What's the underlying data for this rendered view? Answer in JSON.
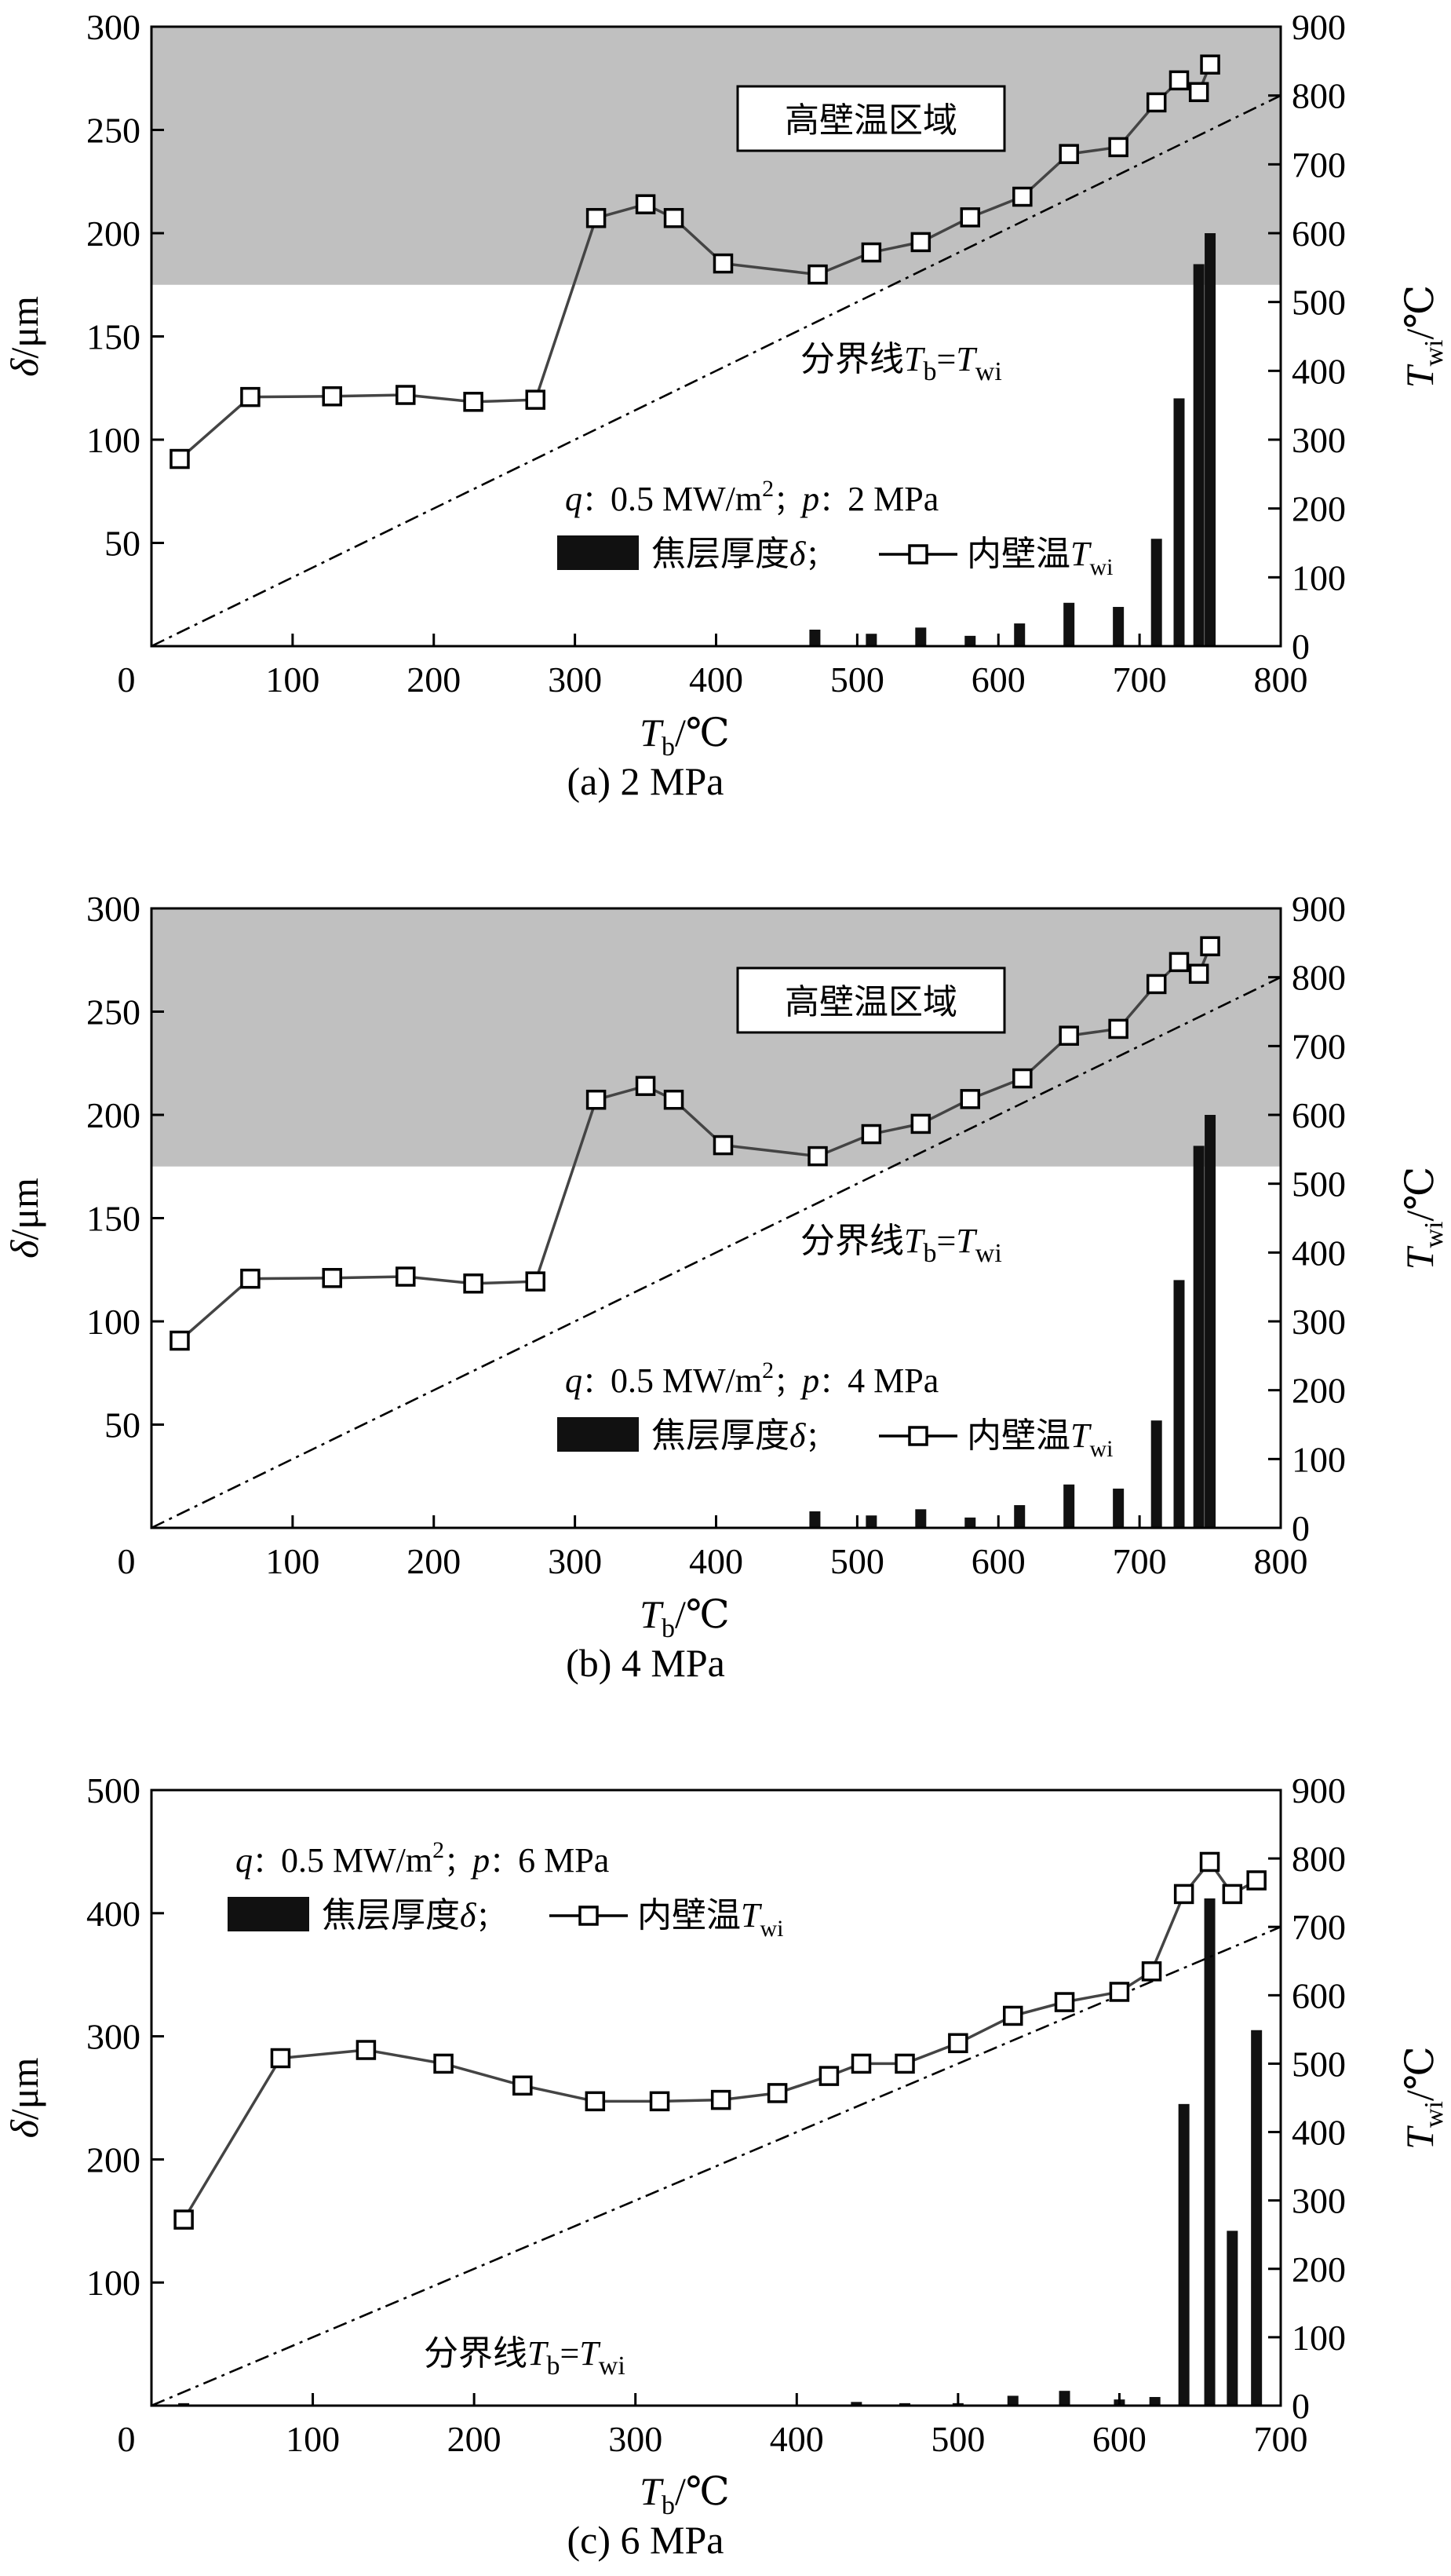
{
  "figure": {
    "charts": [
      {
        "id": "a",
        "caption": "(a) 2 MPa",
        "left_axis": {
          "label_main": "δ",
          "label_unit": "/μm",
          "ylim": [
            0,
            300
          ],
          "ticks": [
            50,
            100,
            150,
            200,
            250,
            300
          ],
          "tick_labels": [
            "50",
            "100",
            "150",
            "200",
            "250",
            "300"
          ]
        },
        "right_axis": {
          "label_main": "T",
          "label_sub": "wi",
          "label_unit": "/℃",
          "ylim": [
            0,
            900
          ],
          "ticks": [
            0,
            100,
            200,
            300,
            400,
            500,
            600,
            700,
            800,
            900
          ],
          "tick_labels": [
            "0",
            "100",
            "200",
            "300",
            "400",
            "500",
            "600",
            "700",
            "800",
            "900"
          ]
        },
        "x_axis": {
          "label_main": "T",
          "label_sub": "b",
          "label_unit": "/℃",
          "xlim": [
            0,
            800
          ],
          "ticks": [
            0,
            100,
            200,
            300,
            400,
            500,
            600,
            700,
            800
          ],
          "tick_labels": [
            "0",
            "100",
            "200",
            "300",
            "400",
            "500",
            "600",
            "700",
            "800"
          ]
        },
        "region_label": "高壁温区域",
        "legend": {
          "cond_q": "q",
          "cond_sep": "：",
          "cond_q_val": "0.5 MW/m",
          "cond_sq": "2",
          "cond_semi": "；",
          "cond_p": "p",
          "cond_p_val": "2 MPa",
          "bar_label": "焦层厚度",
          "bar_symbol": "δ",
          "line_label": "内壁温",
          "line_symbol": "T",
          "line_sub": "wi"
        },
        "boundary_label": {
          "text": "分界线",
          "t1": "T",
          "s1": "b",
          "eq": "=",
          "t2": "T",
          "s2": "wi"
        }
      },
      {
        "id": "b",
        "caption": "(b) 4 MPa",
        "left_axis": {
          "label_main": "δ",
          "label_unit": "/μm",
          "ylim": [
            0,
            300
          ],
          "ticks": [
            50,
            100,
            150,
            200,
            250,
            300
          ],
          "tick_labels": [
            "50",
            "100",
            "150",
            "200",
            "250",
            "300"
          ]
        },
        "right_axis": {
          "label_main": "T",
          "label_sub": "wi",
          "label_unit": "/℃",
          "ylim": [
            0,
            900
          ],
          "ticks": [
            0,
            100,
            200,
            300,
            400,
            500,
            600,
            700,
            800,
            900
          ],
          "tick_labels": [
            "0",
            "100",
            "200",
            "300",
            "400",
            "500",
            "600",
            "700",
            "800",
            "900"
          ]
        },
        "x_axis": {
          "label_main": "T",
          "label_sub": "b",
          "label_unit": "/℃",
          "xlim": [
            0,
            800
          ],
          "ticks": [
            0,
            100,
            200,
            300,
            400,
            500,
            600,
            700,
            800
          ],
          "tick_labels": [
            "0",
            "100",
            "200",
            "300",
            "400",
            "500",
            "600",
            "700",
            "800"
          ]
        },
        "region_label": "高壁温区域",
        "legend": {
          "cond_q": "q",
          "cond_sep": "：",
          "cond_q_val": "0.5 MW/m",
          "cond_sq": "2",
          "cond_semi": "；",
          "cond_p": "p",
          "cond_p_val": "4 MPa",
          "bar_label": "焦层厚度",
          "bar_symbol": "δ",
          "line_label": "内壁温",
          "line_symbol": "T",
          "line_sub": "wi"
        },
        "boundary_label": {
          "text": "分界线",
          "t1": "T",
          "s1": "b",
          "eq": "=",
          "t2": "T",
          "s2": "wi"
        }
      },
      {
        "id": "c",
        "caption": "(c) 6 MPa",
        "left_axis": {
          "label_main": "δ",
          "label_unit": "/μm",
          "ylim": [
            0,
            500
          ],
          "ticks": [
            100,
            200,
            300,
            400,
            500
          ],
          "tick_labels": [
            "100",
            "200",
            "300",
            "400",
            "500"
          ]
        },
        "right_axis": {
          "label_main": "T",
          "label_sub": "wi",
          "label_unit": "/℃",
          "ylim": [
            0,
            900
          ],
          "ticks": [
            0,
            100,
            200,
            300,
            400,
            500,
            600,
            700,
            800,
            900
          ],
          "tick_labels": [
            "0",
            "100",
            "200",
            "300",
            "400",
            "500",
            "600",
            "700",
            "800",
            "900"
          ]
        },
        "x_axis": {
          "label_main": "T",
          "label_sub": "b",
          "label_unit": "/℃",
          "xlim": [
            0,
            700
          ],
          "ticks": [
            0,
            100,
            200,
            300,
            400,
            500,
            600,
            700
          ],
          "tick_labels": [
            "0",
            "100",
            "200",
            "300",
            "400",
            "500",
            "600",
            "700"
          ]
        },
        "legend": {
          "cond_q": "q",
          "cond_sep": "：",
          "cond_q_val": "0.5 MW/m",
          "cond_sq": "2",
          "cond_semi": "；",
          "cond_p": "p",
          "cond_p_val": "6 MPa",
          "bar_label": "焦层厚度",
          "bar_symbol": "δ",
          "line_label": "内壁温",
          "line_symbol": "T",
          "line_sub": "wi"
        },
        "boundary_label": {
          "text": "分界线",
          "t1": "T",
          "s1": "b",
          "eq": "=",
          "t2": "T",
          "s2": "wi"
        }
      }
    ]
  },
  "chart_data": [
    {
      "type": "bar+line",
      "title": "(a) 2 MPa",
      "xlabel": "Tb/℃",
      "ylabel_left": "δ/μm",
      "ylabel_right": "Twi/℃",
      "xlim": [
        0,
        800
      ],
      "ylim_left": [
        0,
        300
      ],
      "ylim_right": [
        0,
        900
      ],
      "high_wall_temp_region_twi": [
        525,
        900
      ],
      "boundary_line": {
        "name": "Tb=Twi",
        "points": [
          [
            0,
            0
          ],
          [
            800,
            800
          ]
        ]
      },
      "series": [
        {
          "name": "焦层厚度δ",
          "axis": "left",
          "kind": "bar",
          "x": [
            470,
            510,
            545,
            580,
            615,
            650,
            685,
            712,
            728,
            742,
            750
          ],
          "values": [
            8,
            6,
            9,
            5,
            11,
            21,
            19,
            52,
            120,
            185,
            200
          ]
        },
        {
          "name": "内壁温Twi",
          "axis": "right",
          "kind": "line",
          "x": [
            20,
            70,
            128,
            180,
            228,
            272,
            315,
            350,
            370,
            405,
            472,
            510,
            545,
            580,
            617,
            650,
            685,
            712,
            728,
            742,
            750
          ],
          "values": [
            272,
            362,
            363,
            365,
            355,
            358,
            622,
            642,
            622,
            556,
            540,
            572,
            587,
            623,
            653,
            715,
            725,
            790,
            822,
            805,
            845
          ]
        }
      ]
    },
    {
      "type": "bar+line",
      "title": "(b) 4 MPa",
      "xlabel": "Tb/℃",
      "ylabel_left": "δ/μm",
      "ylabel_right": "Twi/℃",
      "xlim": [
        0,
        800
      ],
      "ylim_left": [
        0,
        300
      ],
      "ylim_right": [
        0,
        900
      ],
      "high_wall_temp_region_twi": [
        525,
        900
      ],
      "boundary_line": {
        "name": "Tb=Twi",
        "points": [
          [
            0,
            0
          ],
          [
            800,
            800
          ]
        ]
      },
      "series": [
        {
          "name": "焦层厚度δ",
          "axis": "left",
          "kind": "bar",
          "x": [
            470,
            510,
            545,
            580,
            615,
            650,
            685,
            712,
            728,
            742,
            750
          ],
          "values": [
            8,
            6,
            9,
            5,
            11,
            21,
            19,
            52,
            120,
            185,
            200
          ]
        },
        {
          "name": "内壁温Twi",
          "axis": "right",
          "kind": "line",
          "x": [
            20,
            70,
            128,
            180,
            228,
            272,
            315,
            350,
            370,
            405,
            472,
            510,
            545,
            580,
            617,
            650,
            685,
            712,
            728,
            742,
            750
          ],
          "values": [
            272,
            362,
            363,
            365,
            355,
            358,
            622,
            642,
            622,
            556,
            540,
            572,
            587,
            623,
            653,
            715,
            725,
            790,
            822,
            805,
            845
          ]
        }
      ]
    },
    {
      "type": "bar+line",
      "title": "(c) 6 MPa",
      "xlabel": "Tb/℃",
      "ylabel_left": "δ/μm",
      "ylabel_right": "Twi/℃",
      "xlim": [
        0,
        700
      ],
      "ylim_left": [
        0,
        500
      ],
      "ylim_right": [
        0,
        900
      ],
      "boundary_line": {
        "name": "Tb=Twi",
        "points": [
          [
            0,
            0
          ],
          [
            700,
            700
          ]
        ]
      },
      "series": [
        {
          "name": "焦层厚度δ",
          "axis": "left",
          "kind": "bar",
          "x": [
            20,
            437,
            467,
            500,
            534,
            566,
            600,
            622,
            640,
            656,
            670,
            685
          ],
          "values": [
            2,
            3,
            2,
            2,
            8,
            12,
            5,
            7,
            245,
            412,
            142,
            305
          ]
        },
        {
          "name": "内壁温Twi",
          "axis": "right",
          "kind": "line",
          "x": [
            20,
            80,
            133,
            181,
            230,
            275,
            315,
            353,
            388,
            420,
            440,
            467,
            500,
            534,
            566,
            600,
            620,
            640,
            656,
            670,
            685
          ],
          "values": [
            272,
            508,
            520,
            500,
            468,
            445,
            445,
            447,
            457,
            482,
            500,
            500,
            530,
            570,
            590,
            605,
            635,
            748,
            795,
            748,
            768
          ]
        }
      ]
    }
  ]
}
